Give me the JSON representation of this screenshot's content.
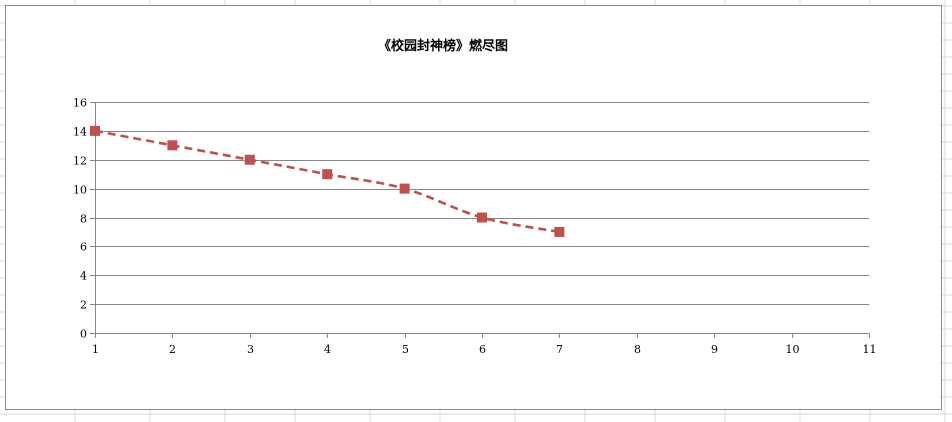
{
  "chart_data": {
    "type": "line",
    "title": "《校园封神榜》燃尽图",
    "xlabel": "",
    "ylabel": "",
    "xlim": [
      1,
      11
    ],
    "ylim": [
      0,
      16
    ],
    "x_ticks": [
      1,
      2,
      3,
      4,
      5,
      6,
      7,
      8,
      9,
      10,
      11
    ],
    "y_ticks": [
      0,
      2,
      4,
      6,
      8,
      10,
      12,
      14,
      16
    ],
    "grid": "horizontal",
    "legend": "none",
    "series": [
      {
        "x": [
          1,
          2,
          3,
          4,
          5,
          6,
          7
        ],
        "values": [
          14,
          13,
          12,
          11,
          10,
          8,
          7
        ],
        "color": "#c0504d",
        "line_style": "dashed",
        "marker": "square",
        "smooth": true
      }
    ]
  }
}
